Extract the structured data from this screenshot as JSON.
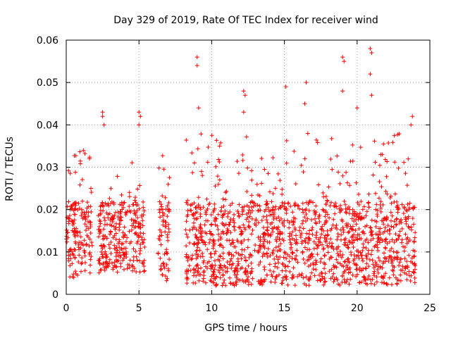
{
  "chart_data": {
    "type": "scatter",
    "title": "Day 329 of 2019, Rate Of TEC Index for receiver wind",
    "xlabel": "GPS time / hours",
    "ylabel": "ROTI / TECUs",
    "xlim": [
      0,
      25
    ],
    "ylim": [
      0,
      0.06
    ],
    "xticks": [
      0,
      5,
      10,
      15,
      20,
      25
    ],
    "xtick_labels": [
      "0",
      "5",
      "10",
      "15",
      "20",
      "25"
    ],
    "yticks": [
      0,
      0.01,
      0.02,
      0.03,
      0.04,
      0.05,
      0.06
    ],
    "ytick_labels": [
      "0",
      "0.01",
      "0.02",
      "0.03",
      "0.04",
      "0.05",
      "0.06"
    ],
    "grid": true,
    "marker": "+",
    "color": "#ff0000",
    "clusters": [
      {
        "x_start": 0.0,
        "x_end": 1.8,
        "y_low": 0.004,
        "y_high": 0.035
      },
      {
        "x_start": 2.2,
        "x_end": 5.4,
        "y_low": 0.005,
        "y_high": 0.032
      },
      {
        "x_start": 6.3,
        "x_end": 7.1,
        "y_low": 0.003,
        "y_high": 0.033
      },
      {
        "x_start": 8.2,
        "x_end": 24.0,
        "y_low": 0.002,
        "y_high": 0.038
      }
    ],
    "outliers": [
      {
        "x": 2.5,
        "y": 0.043
      },
      {
        "x": 2.5,
        "y": 0.042
      },
      {
        "x": 2.6,
        "y": 0.04
      },
      {
        "x": 5.0,
        "y": 0.043
      },
      {
        "x": 5.1,
        "y": 0.042
      },
      {
        "x": 5.0,
        "y": 0.04
      },
      {
        "x": 9.0,
        "y": 0.056
      },
      {
        "x": 9.0,
        "y": 0.054
      },
      {
        "x": 9.1,
        "y": 0.044
      },
      {
        "x": 12.2,
        "y": 0.048
      },
      {
        "x": 12.3,
        "y": 0.047
      },
      {
        "x": 12.2,
        "y": 0.043
      },
      {
        "x": 15.1,
        "y": 0.049
      },
      {
        "x": 16.5,
        "y": 0.05
      },
      {
        "x": 16.4,
        "y": 0.045
      },
      {
        "x": 19.0,
        "y": 0.056
      },
      {
        "x": 19.1,
        "y": 0.055
      },
      {
        "x": 19.0,
        "y": 0.048
      },
      {
        "x": 20.0,
        "y": 0.044
      },
      {
        "x": 20.9,
        "y": 0.058
      },
      {
        "x": 21.0,
        "y": 0.057
      },
      {
        "x": 20.9,
        "y": 0.052
      },
      {
        "x": 21.0,
        "y": 0.047
      },
      {
        "x": 23.8,
        "y": 0.042
      },
      {
        "x": 23.7,
        "y": 0.04
      }
    ]
  }
}
